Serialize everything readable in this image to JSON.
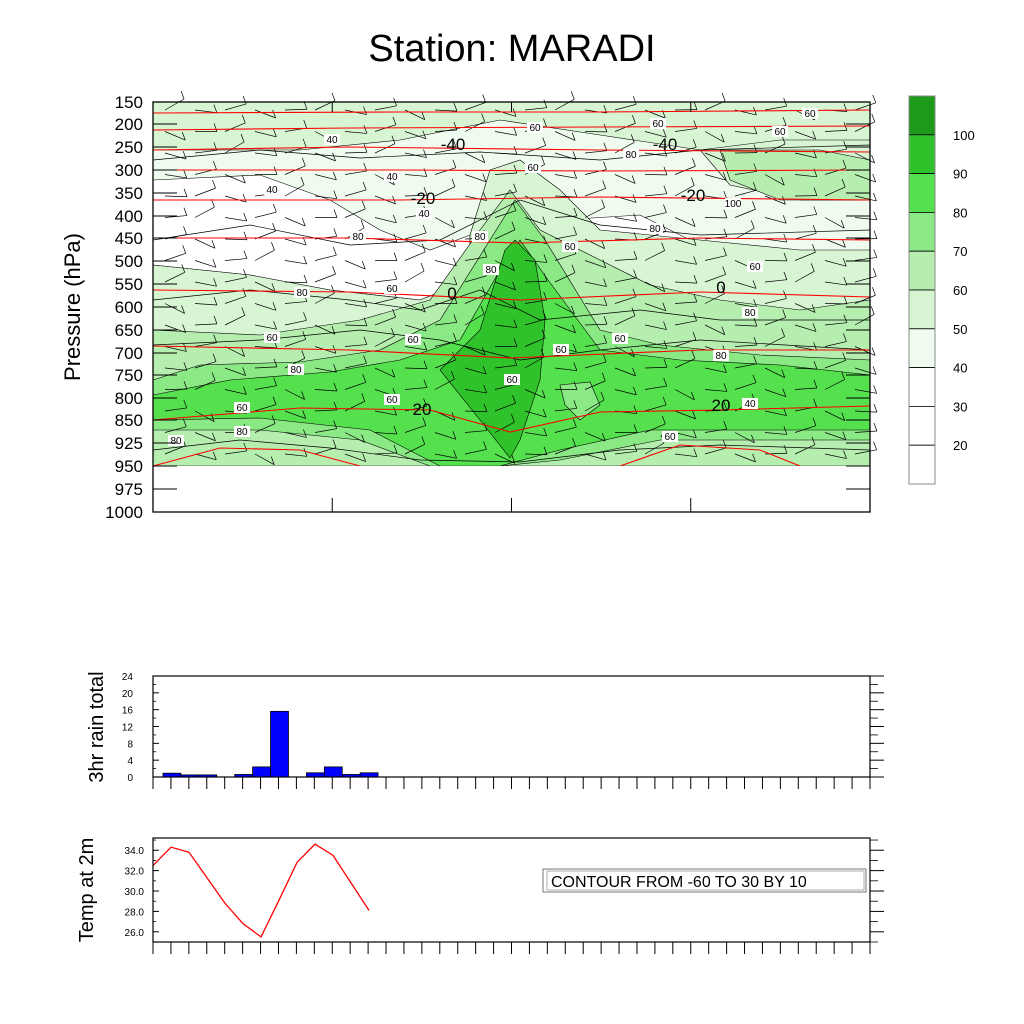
{
  "title": "Station: MARADI",
  "colors": {
    "fill_levels": [
      "#ffffff",
      "#f0fbef",
      "#d7f5d3",
      "#b6eeb0",
      "#8ae885",
      "#55e04e",
      "#30c22a",
      "#1e9a1a"
    ],
    "temp_contour": "#ff0000",
    "rh_contour": "#000000",
    "bar_fill": "#0000ff",
    "temp_line": "#ff0000"
  },
  "chart_data": [
    {
      "type": "heatmap",
      "name": "relative-humidity-temperature-cross-section",
      "ylabel": "Pressure (hPa)",
      "y_ticks": [
        "150",
        "200",
        "250",
        "300",
        "350",
        "400",
        "450",
        "500",
        "550",
        "600",
        "650",
        "700",
        "750",
        "800",
        "850",
        "925",
        "950",
        "975",
        "1000"
      ],
      "x_major_ticks": 5,
      "legend": {
        "position": "right",
        "labels": [
          "100",
          "90",
          "80",
          "70",
          "60",
          "50",
          "40",
          "30",
          "20"
        ],
        "levels": [
          100,
          90,
          80,
          70,
          60,
          50,
          40,
          30,
          20
        ]
      },
      "temperature_contour_labels": [
        "-40",
        "-40",
        "-20",
        "-20",
        "0",
        "0",
        "20",
        "20"
      ],
      "rh_contour_labels": [
        "40",
        "60",
        "60",
        "60",
        "60",
        "40",
        "40",
        "40",
        "60",
        "80",
        "80",
        "80",
        "60",
        "80",
        "60",
        "80",
        "80",
        "100",
        "80",
        "60",
        "60",
        "60",
        "80",
        "80",
        "60",
        "60",
        "60",
        "40",
        "60",
        "80",
        "80",
        "60",
        "60"
      ]
    },
    {
      "type": "bar",
      "name": "3hr-rain-total",
      "ylabel": "3hr rain total",
      "y_ticks": [
        "24",
        "20",
        "16",
        "12",
        "8",
        "4",
        "0"
      ],
      "ylim": [
        0,
        24
      ],
      "values": [
        0.9,
        0.5,
        0.5,
        0,
        0.6,
        2.4,
        15.6,
        0,
        1.0,
        2.4,
        0.6,
        1.0
      ],
      "color": "#0000ff"
    },
    {
      "type": "line",
      "name": "temp-at-2m",
      "ylabel": "Temp at 2m",
      "y_ticks": [
        "34.0",
        "32.0",
        "30.0",
        "28.0",
        "26.0"
      ],
      "ylim": [
        25.0,
        35.2
      ],
      "values": [
        32.5,
        34.3,
        33.8,
        31.3,
        28.8,
        26.8,
        25.5,
        29.1,
        32.8,
        34.6,
        33.5,
        30.8,
        28.1
      ],
      "annotation": "CONTOUR FROM -60 TO 30 BY 10"
    }
  ]
}
